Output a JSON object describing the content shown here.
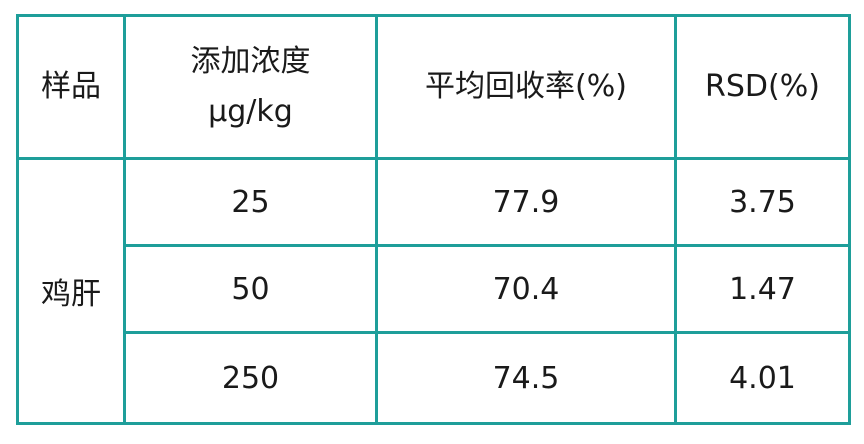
{
  "table": {
    "headers": {
      "sample": "样品",
      "concentration_line1": "添加浓度",
      "concentration_line2": "μg/kg",
      "recovery": "平均回收率(%)",
      "rsd": "RSD(%)"
    },
    "sample_name": "鸡肝",
    "rows": [
      {
        "concentration": "25",
        "recovery": "77.9",
        "rsd": "3.75"
      },
      {
        "concentration": "50",
        "recovery": "70.4",
        "rsd": "1.47"
      },
      {
        "concentration": "250",
        "recovery": "74.5",
        "rsd": "4.01"
      }
    ],
    "border_color": "#1e9e9a"
  }
}
